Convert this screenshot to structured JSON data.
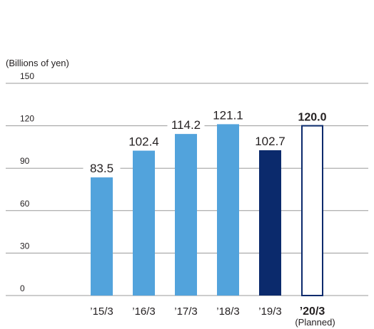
{
  "chart_data": {
    "type": "bar",
    "title": "",
    "ylabel": "(Billions of yen)",
    "xlabel": "",
    "ylim": [
      0,
      150
    ],
    "yticks": [
      0,
      30,
      60,
      90,
      120,
      150
    ],
    "grid": true,
    "categories": [
      "’15/3",
      "’16/3",
      "’17/3",
      "’18/3",
      "’19/3",
      "’20/3"
    ],
    "category_notes": [
      "",
      "",
      "",
      "",
      "",
      "(Planned)"
    ],
    "values": [
      83.5,
      102.4,
      114.2,
      121.1,
      102.7,
      120.0
    ],
    "value_labels": [
      "83.5",
      "102.4",
      "114.2",
      "121.1",
      "102.7",
      "120.0"
    ],
    "bar_styles": [
      "actual",
      "actual",
      "actual",
      "actual",
      "current",
      "planned"
    ],
    "colors": {
      "actual": "#52a3dc",
      "current": "#0b2a6c",
      "planned_fill": "#ffffff",
      "planned_stroke": "#0b2a6c",
      "grid": "#9a9a9a",
      "text": "#231f20"
    }
  }
}
